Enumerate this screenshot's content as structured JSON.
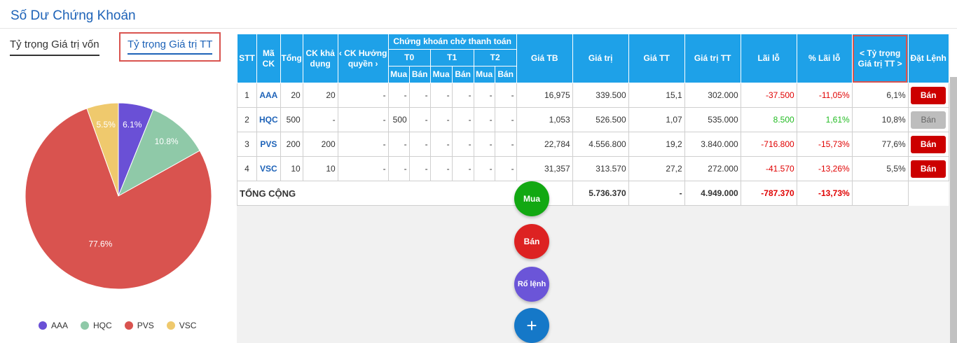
{
  "page": {
    "title": "Số Dư Chứng Khoán"
  },
  "tabs": [
    {
      "label": "Tỷ trọng Giá trị vốn"
    },
    {
      "label": "Tỷ trọng Giá trị TT"
    }
  ],
  "chart_data": {
    "type": "pie",
    "categories": [
      "AAA",
      "HQC",
      "PVS",
      "VSC"
    ],
    "values": [
      6.1,
      10.8,
      77.6,
      5.5
    ],
    "labels": [
      "6.1%",
      "10.8%",
      "77.6%",
      "5.5%"
    ],
    "colors": [
      "#6a50d6",
      "#8fc9a8",
      "#d9534f",
      "#efc96d"
    ],
    "legend": "bottom"
  },
  "table": {
    "headers": {
      "stt": "STT",
      "ma_ck": "Mã CK",
      "tong": "Tổng",
      "ck_kha_dung": "CK khả dụng",
      "ck_huong_quyen": "‹ CK Hưởng quyền ›",
      "ck_cho_tt": "Chứng khoán chờ thanh toán",
      "t0": "T0",
      "t1": "T1",
      "t2": "T2",
      "mua": "Mua",
      "ban": "Bán",
      "gia_tb": "Giá TB",
      "gia_tri": "Giá trị",
      "gia_tt": "Giá TT",
      "gia_tri_tt": "Giá trị TT",
      "lai_lo": "Lãi lỗ",
      "pct_lai_lo": "% Lãi lỗ",
      "ty_trong": "< Tỷ trọng Giá trị TT >",
      "dat_lenh": "Đặt Lệnh"
    },
    "rows": [
      {
        "stt": "1",
        "code": "AAA",
        "tong": "20",
        "kha_dung": "20",
        "huong_quyen": "-",
        "t0_mua": "-",
        "t0_ban": "-",
        "t1_mua": "-",
        "t1_ban": "-",
        "t2_mua": "-",
        "t2_ban": "-",
        "gia_tb": "16,975",
        "gia_tri": "339.500",
        "gia_tt": "15,1",
        "gia_tri_tt": "302.000",
        "lai_lo": "-37.500",
        "pct_lai_lo": "-11,05%",
        "ty_trong": "6,1%",
        "action": "Bán"
      },
      {
        "stt": "2",
        "code": "HQC",
        "tong": "500",
        "kha_dung": "-",
        "huong_quyen": "-",
        "t0_mua": "500",
        "t0_ban": "-",
        "t1_mua": "-",
        "t1_ban": "-",
        "t2_mua": "-",
        "t2_ban": "-",
        "gia_tb": "1,053",
        "gia_tri": "526.500",
        "gia_tt": "1,07",
        "gia_tri_tt": "535.000",
        "lai_lo": "8.500",
        "pct_lai_lo": "1,61%",
        "ty_trong": "10,8%",
        "action": "Bán"
      },
      {
        "stt": "3",
        "code": "PVS",
        "tong": "200",
        "kha_dung": "200",
        "huong_quyen": "-",
        "t0_mua": "-",
        "t0_ban": "-",
        "t1_mua": "-",
        "t1_ban": "-",
        "t2_mua": "-",
        "t2_ban": "-",
        "gia_tb": "22,784",
        "gia_tri": "4.556.800",
        "gia_tt": "19,2",
        "gia_tri_tt": "3.840.000",
        "lai_lo": "-716.800",
        "pct_lai_lo": "-15,73%",
        "ty_trong": "77,6%",
        "action": "Bán"
      },
      {
        "stt": "4",
        "code": "VSC",
        "tong": "10",
        "kha_dung": "10",
        "huong_quyen": "-",
        "t0_mua": "-",
        "t0_ban": "-",
        "t1_mua": "-",
        "t1_ban": "-",
        "t2_mua": "-",
        "t2_ban": "-",
        "gia_tb": "31,357",
        "gia_tri": "313.570",
        "gia_tt": "27,2",
        "gia_tri_tt": "272.000",
        "lai_lo": "-41.570",
        "pct_lai_lo": "-13,26%",
        "ty_trong": "5,5%",
        "action": "Bán"
      }
    ],
    "total": {
      "label": "TỔNG CỘNG",
      "gia_tri": "5.736.370",
      "gia_tt": "-",
      "gia_tri_tt": "4.949.000",
      "lai_lo": "-787.370",
      "pct_lai_lo": "-13,73%"
    }
  },
  "fab": {
    "mua": "Mua",
    "ban": "Bán",
    "ro_lenh": "Rổ lệnh",
    "add": "+"
  },
  "colors": {
    "header": "#1ea1e8",
    "accent": "#1e63b8",
    "sell": "#cc0000",
    "loss": "#e00000",
    "gain": "#22bb22"
  }
}
